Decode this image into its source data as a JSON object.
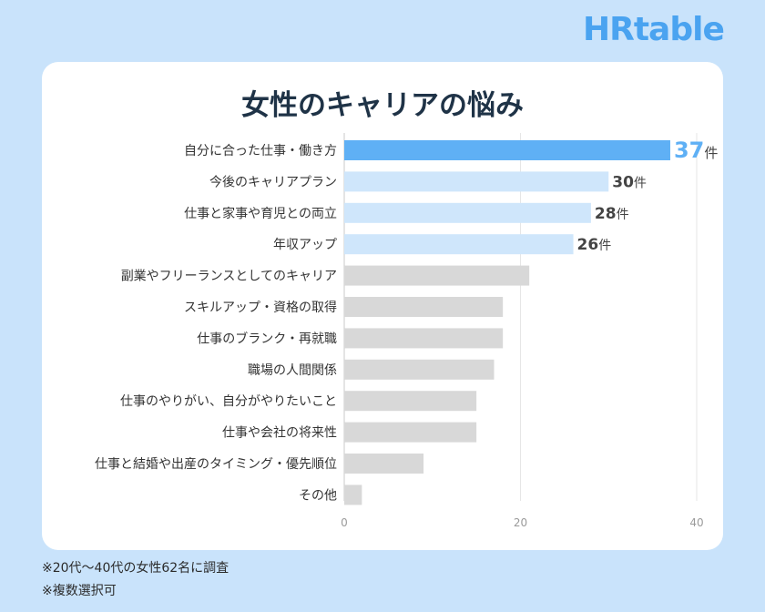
{
  "brand": {
    "logo_text": "HRtable"
  },
  "colors": {
    "background": "#c9e3fb",
    "highlight": "#5fb0f5",
    "light_blue": "#cfe6fb",
    "gray": "#d8d8d8",
    "text": "#333333"
  },
  "notes": [
    "※20代〜40代の女性62名に調査",
    "※複数選択可"
  ],
  "chart_data": {
    "type": "bar",
    "orientation": "horizontal",
    "title": "女性のキャリアの悩み",
    "categories": [
      "自分に合った仕事・働き方",
      "今後のキャリアプラン",
      "仕事と家事や育児との両立",
      "年収アップ",
      "副業やフリーランスとしてのキャリア",
      "スキルアップ・資格の取得",
      "仕事のブランク・再就職",
      "職場の人間関係",
      "仕事のやりがい、自分がやりたいこと",
      "仕事や会社の将来性",
      "仕事と結婚や出産のタイミング・優先順位",
      "その他"
    ],
    "values": [
      37,
      30,
      28,
      26,
      21,
      18,
      18,
      17,
      15,
      15,
      9,
      2
    ],
    "data_labels": [
      {
        "number": "37",
        "unit": "件"
      },
      {
        "number": "30",
        "unit": "件"
      },
      {
        "number": "28",
        "unit": "件"
      },
      {
        "number": "26",
        "unit": "件"
      }
    ],
    "bar_colors": [
      "highlight",
      "light_blue",
      "light_blue",
      "light_blue",
      "gray",
      "gray",
      "gray",
      "gray",
      "gray",
      "gray",
      "gray",
      "gray"
    ],
    "xticks": [
      "0",
      "20",
      "40"
    ],
    "xlim": [
      0,
      40
    ],
    "grid": true
  }
}
